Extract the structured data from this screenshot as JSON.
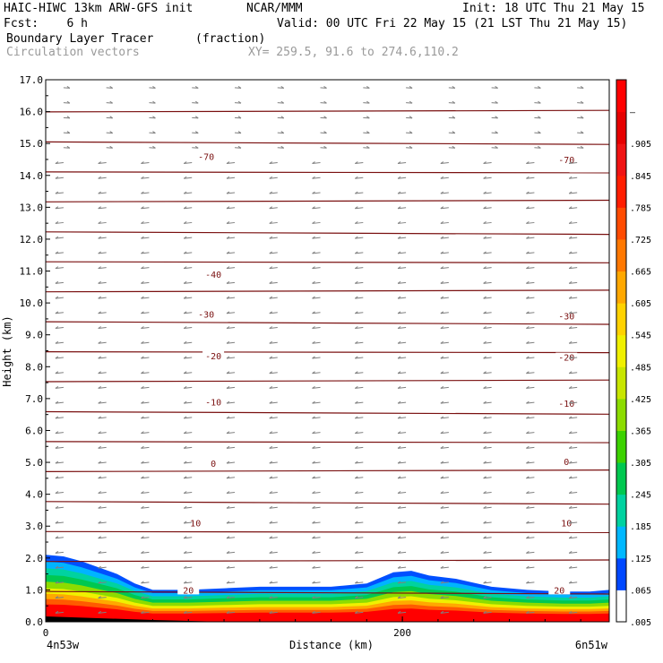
{
  "header": {
    "title_left": "HAIC-HIWC 13km ARW-GFS init",
    "org": "NCAR/MMM",
    "init": "Init: 18 UTC Thu 21 May 15",
    "fcst": "Fcst:    6 h",
    "valid": "Valid: 00 UTC Fri 22 May 15 (21 LST Thu 21 May 15)",
    "field_name": "Boundary Layer Tracer",
    "field_units": "(fraction)",
    "vector_name": "Circulation vectors",
    "xy_range": "XY= 259.5, 91.6 to 274.6,110.2"
  },
  "chart_data": {
    "type": "heatmap",
    "title": "Boundary Layer Tracer",
    "units": "fraction",
    "xlabel": "Distance (km)",
    "ylabel": "Height (km)",
    "xlim": [
      0,
      316
    ],
    "ylim": [
      0,
      17
    ],
    "x_ticks": [
      {
        "value": 0,
        "label": "0"
      },
      {
        "value": 200,
        "label": "200"
      }
    ],
    "x_end_labels": {
      "left": "4n53w",
      "right": "6n51w"
    },
    "y_ticks": [
      "0.0",
      "1.0",
      "2.0",
      "3.0",
      "4.0",
      "5.0",
      "6.0",
      "7.0",
      "8.0",
      "9.0",
      "10.0",
      "11.0",
      "12.0",
      "13.0",
      "14.0",
      "15.0",
      "16.0",
      "17.0"
    ],
    "colorbar": {
      "labels": [
        ".005",
        ".065",
        ".125",
        ".185",
        ".245",
        ".305",
        ".365",
        ".425",
        ".485",
        ".545",
        ".605",
        ".665",
        ".725",
        ".785",
        ".845",
        ".905",
        "–"
      ],
      "colors": [
        "#ffffff",
        "#0048ff",
        "#00b8ff",
        "#00d2a0",
        "#00c850",
        "#3cd200",
        "#8cdc00",
        "#c8e600",
        "#f0f000",
        "#ffd200",
        "#ffa800",
        "#ff7800",
        "#ff4b00",
        "#ff1e00",
        "#f01414",
        "#e60000",
        "#ff0000"
      ]
    },
    "tracer_top_km": [
      [
        0,
        2.1
      ],
      [
        10,
        2.05
      ],
      [
        20,
        1.9
      ],
      [
        30,
        1.7
      ],
      [
        40,
        1.5
      ],
      [
        50,
        1.2
      ],
      [
        60,
        1.0
      ],
      [
        80,
        1.0
      ],
      [
        100,
        1.05
      ],
      [
        120,
        1.1
      ],
      [
        140,
        1.1
      ],
      [
        160,
        1.1
      ],
      [
        180,
        1.2
      ],
      [
        195,
        1.55
      ],
      [
        205,
        1.6
      ],
      [
        215,
        1.45
      ],
      [
        230,
        1.35
      ],
      [
        250,
        1.1
      ],
      [
        270,
        1.0
      ],
      [
        290,
        0.95
      ],
      [
        305,
        0.95
      ],
      [
        316,
        1.0
      ]
    ],
    "temperature_contour_labels": [
      {
        "value": "-70",
        "x_km": 90,
        "z_km": 14.6
      },
      {
        "value": "-70",
        "x_km": 292,
        "z_km": 14.5
      },
      {
        "value": "-40",
        "x_km": 94,
        "z_km": 10.9
      },
      {
        "value": "-30",
        "x_km": 90,
        "z_km": 9.65
      },
      {
        "value": "-30",
        "x_km": 292,
        "z_km": 9.6
      },
      {
        "value": "-20",
        "x_km": 94,
        "z_km": 8.35
      },
      {
        "value": "-20",
        "x_km": 292,
        "z_km": 8.3
      },
      {
        "value": "-10",
        "x_km": 94,
        "z_km": 6.9
      },
      {
        "value": "-10",
        "x_km": 292,
        "z_km": 6.85
      },
      {
        "value": "0",
        "x_km": 94,
        "z_km": 4.98
      },
      {
        "value": "0",
        "x_km": 292,
        "z_km": 5.03
      },
      {
        "value": "10",
        "x_km": 84,
        "z_km": 3.1
      },
      {
        "value": "10",
        "x_km": 292,
        "z_km": 3.1
      },
      {
        "value": "20",
        "x_km": 80,
        "z_km": 1.0
      },
      {
        "value": "20",
        "x_km": 288,
        "z_km": 1.0
      }
    ]
  },
  "colors": {
    "contour": "#7a1010",
    "vector": "#808080",
    "frame": "#000000"
  }
}
